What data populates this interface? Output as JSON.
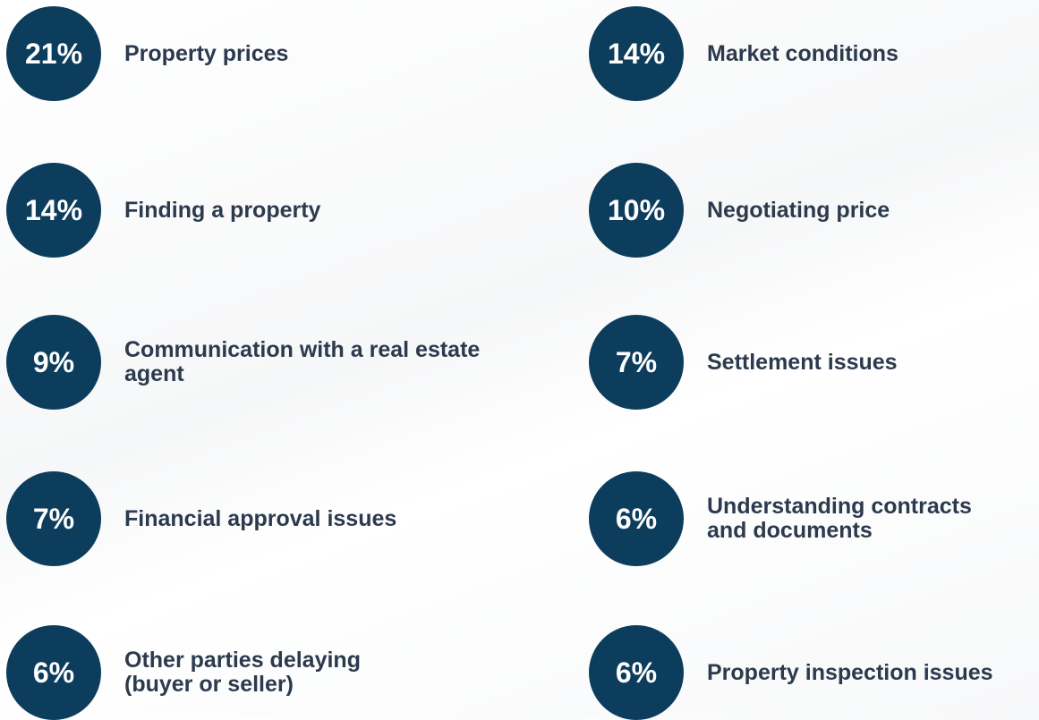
{
  "items": [
    {
      "percent": "21%",
      "label": "Property prices"
    },
    {
      "percent": "14%",
      "label": "Finding a property"
    },
    {
      "percent": "9%",
      "label": "Communication with a real estate agent"
    },
    {
      "percent": "7%",
      "label": "Financial approval issues"
    },
    {
      "percent": "6%",
      "label": "Other parties delaying (buyer or seller)"
    },
    {
      "percent": "14%",
      "label": "Market conditions"
    },
    {
      "percent": "10%",
      "label": "Negotiating price"
    },
    {
      "percent": "7%",
      "label": "Settlement issues"
    },
    {
      "percent": "6%",
      "label": "Understanding contracts and documents"
    },
    {
      "percent": "6%",
      "label": "Property inspection issues"
    }
  ]
}
